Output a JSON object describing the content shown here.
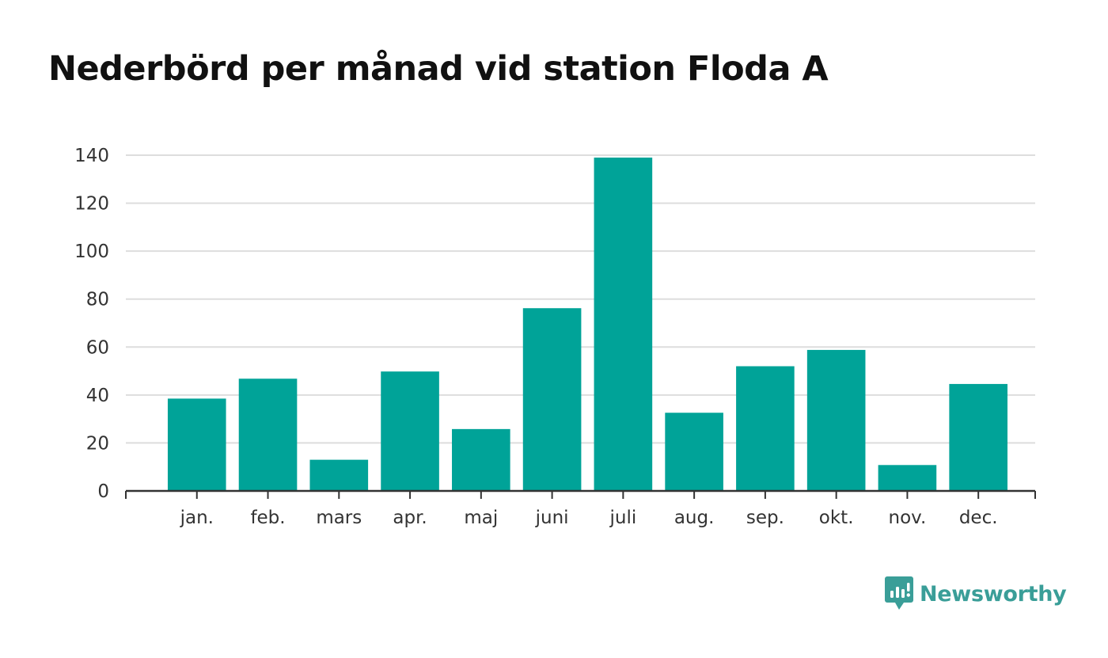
{
  "chart_data": {
    "type": "bar",
    "title": "Nederbörd per månad vid station Floda A",
    "xlabel": "",
    "ylabel": "",
    "categories": [
      "jan.",
      "feb.",
      "mars",
      "apr.",
      "maj",
      "juni",
      "juli",
      "aug.",
      "sep.",
      "okt.",
      "nov.",
      "dec."
    ],
    "values": [
      38.5,
      46.8,
      13.0,
      49.8,
      25.8,
      76.2,
      139.0,
      32.6,
      52.0,
      58.8,
      10.8,
      44.6
    ],
    "ylim": [
      0,
      140
    ],
    "yticks": [
      "0",
      "20",
      "40",
      "60",
      "80",
      "100",
      "120",
      "140"
    ],
    "grid": true,
    "bar_color": "#00a398",
    "grid_color": "#dddddd",
    "axis_color": "#333333"
  },
  "brand": {
    "name": "Newsworthy",
    "icon": "newsworthy-logo-icon",
    "color": "#3a9e98"
  }
}
